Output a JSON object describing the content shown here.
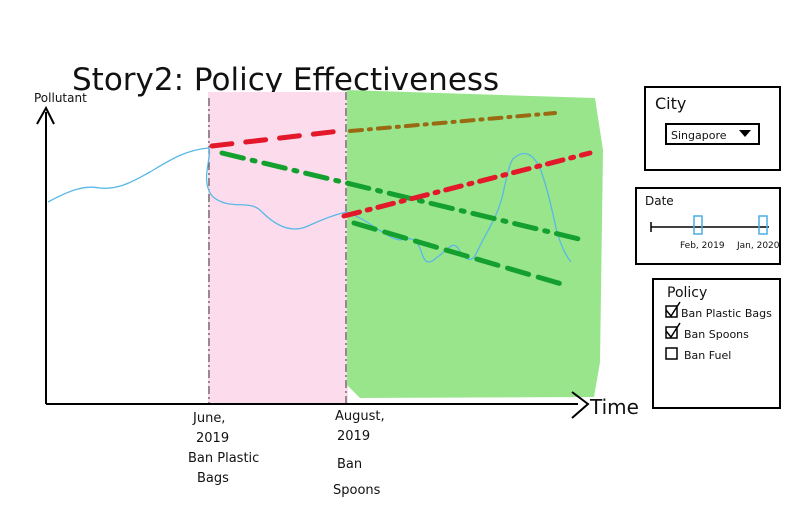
{
  "title": "Story2: Policy Effectiveness",
  "y_axis_label": "Pollutant",
  "x_axis_label": "Time",
  "events": [
    {
      "lines": [
        "June,",
        "2019",
        "Ban Plastic",
        "Bags"
      ]
    },
    {
      "lines": [
        "August,",
        "2019",
        "Ban",
        "Spoons"
      ]
    }
  ],
  "colors": {
    "pink_region": "#fcdcec",
    "green_region": "#98e58c",
    "observed_line": "#5ab8e6",
    "red_trend": "#e3182a",
    "green_trend": "#13a02f",
    "olive_trend": "#9a6a12"
  },
  "panels": {
    "city": {
      "label": "City",
      "selected": "Singapore",
      "icon": "dropdown-triangle-icon"
    },
    "date": {
      "label": "Date",
      "start": "Feb, 2019",
      "end": "Jan, 2020"
    },
    "policy": {
      "label": "Policy",
      "options": [
        {
          "label": "Ban Plastic Bags",
          "checked": true
        },
        {
          "label": "Ban Spoons",
          "checked": true
        },
        {
          "label": "Ban Fuel",
          "checked": false
        }
      ]
    }
  }
}
